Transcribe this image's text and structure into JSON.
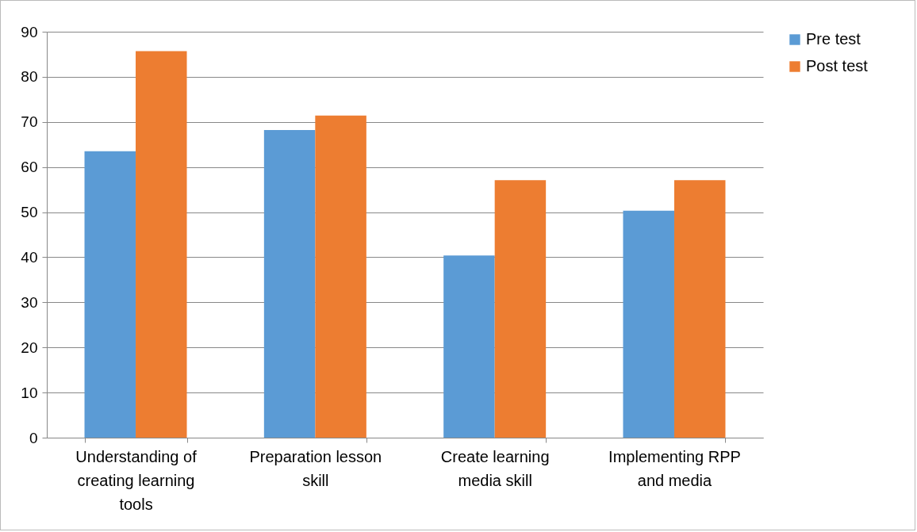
{
  "chart_data": {
    "type": "bar",
    "categories": [
      "Understanding of creating learning tools",
      "Preparation lesson skill",
      "Create learning media skill",
      "Implementing RPP and media"
    ],
    "series": [
      {
        "name": "Pre test",
        "color": "#5b9bd5",
        "values": [
          63.5,
          68.2,
          40.4,
          50.3
        ]
      },
      {
        "name": "Post test",
        "color": "#ed7d31",
        "values": [
          85.7,
          71.4,
          57.1,
          57.1
        ]
      }
    ],
    "ylim": [
      0,
      90
    ],
    "yticks": [
      0,
      10,
      20,
      30,
      40,
      50,
      60,
      70,
      80,
      90
    ],
    "grid": "y",
    "legend": "right"
  }
}
